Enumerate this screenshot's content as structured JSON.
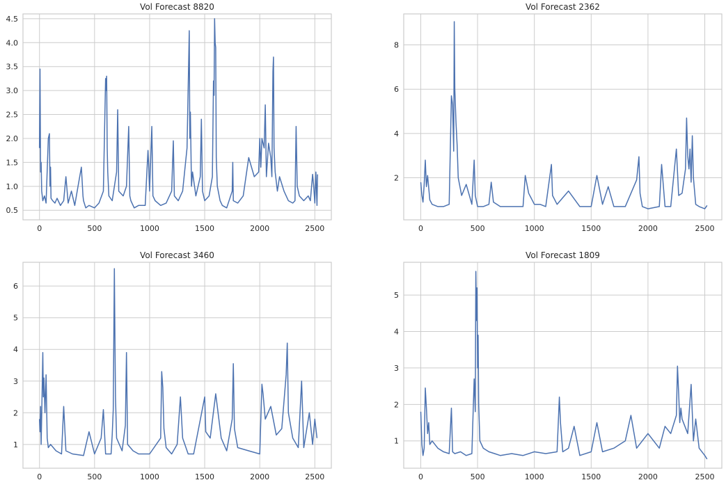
{
  "chart_data": [
    {
      "type": "line",
      "title": "Vol Forecast 8820",
      "xlabel": "",
      "ylabel": "",
      "xlim": [
        -150,
        2650
      ],
      "ylim": [
        0.3,
        4.6
      ],
      "xticks": [
        0,
        500,
        1000,
        1500,
        2000,
        2500
      ],
      "xtick_labels": [
        "0",
        "500",
        "1000",
        "1500",
        "2000",
        "2500"
      ],
      "yticks": [
        0.5,
        1.0,
        1.5,
        2.0,
        2.5,
        3.0,
        3.5,
        4.0,
        4.5
      ],
      "ytick_labels": [
        "0.5",
        "1.0",
        "1.5",
        "2.0",
        "2.5",
        "3.0",
        "3.5",
        "4.0",
        "4.5"
      ],
      "grid": true,
      "color": "#4c72b0",
      "series": [
        {
          "x": [
            0,
            5,
            10,
            15,
            20,
            30,
            45,
            60,
            80,
            90,
            95,
            100,
            105,
            120,
            140,
            160,
            190,
            220,
            240,
            260,
            290,
            320,
            350,
            380,
            395,
            400,
            420,
            450,
            500,
            540,
            580,
            600,
            605,
            610,
            615,
            620,
            630,
            660,
            700,
            710,
            720,
            760,
            790,
            810,
            820,
            830,
            860,
            900,
            960,
            985,
            990,
            1000,
            1020,
            1030,
            1050,
            1100,
            1150,
            1200,
            1215,
            1225,
            1260,
            1300,
            1340,
            1360,
            1365,
            1370,
            1380,
            1390,
            1420,
            1460,
            1470,
            1480,
            1500,
            1540,
            1570,
            1580,
            1585,
            1590,
            1595,
            1600,
            1605,
            1615,
            1640,
            1660,
            1700,
            1750,
            1755,
            1760,
            1800,
            1850,
            1900,
            1950,
            1990,
            2000,
            2010,
            2020,
            2040,
            2050,
            2060,
            2080,
            2100,
            2110,
            2120,
            2125,
            2130,
            2140,
            2160,
            2180,
            2220,
            2260,
            2300,
            2320,
            2330,
            2340,
            2360,
            2400,
            2440,
            2460,
            2480,
            2490,
            2500,
            2510,
            2520,
            2525
          ],
          "y": [
            1.8,
            3.45,
            1.3,
            1.5,
            0.9,
            0.7,
            0.8,
            0.65,
            2.0,
            2.1,
            1.0,
            1.4,
            0.75,
            0.7,
            0.65,
            0.75,
            0.6,
            0.7,
            1.2,
            0.65,
            0.9,
            0.6,
            1.0,
            1.4,
            0.8,
            0.7,
            0.55,
            0.6,
            0.55,
            0.65,
            0.9,
            3.25,
            3.0,
            3.3,
            1.8,
            1.3,
            0.8,
            0.7,
            1.3,
            2.6,
            0.9,
            0.8,
            1.0,
            2.25,
            0.8,
            0.7,
            0.55,
            0.6,
            0.6,
            1.75,
            1.5,
            0.9,
            2.25,
            0.8,
            0.7,
            0.6,
            0.65,
            0.9,
            1.95,
            0.8,
            0.7,
            0.9,
            1.8,
            4.25,
            2.0,
            2.55,
            1.0,
            1.3,
            0.8,
            1.2,
            2.4,
            0.9,
            0.7,
            0.8,
            1.2,
            3.2,
            2.9,
            4.5,
            4.0,
            3.9,
            1.6,
            1.0,
            0.7,
            0.6,
            0.55,
            0.9,
            1.5,
            0.7,
            0.65,
            0.8,
            1.6,
            1.2,
            1.3,
            2.0,
            1.4,
            2.0,
            1.8,
            2.7,
            1.2,
            1.9,
            1.6,
            1.2,
            3.4,
            3.7,
            1.8,
            1.3,
            0.9,
            1.2,
            0.9,
            0.7,
            0.65,
            0.7,
            2.25,
            1.0,
            0.8,
            0.7,
            0.8,
            0.7,
            1.25,
            1.0,
            0.65,
            1.3,
            0.6,
            1.25
          ]
        }
      ]
    },
    {
      "type": "line",
      "title": "Vol Forecast 2362",
      "xlabel": "",
      "ylabel": "",
      "xlim": [
        -150,
        2650
      ],
      "ylim": [
        0.1,
        9.4
      ],
      "xticks": [
        0,
        500,
        1000,
        1500,
        2000,
        2500
      ],
      "xtick_labels": [
        "0",
        "500",
        "1000",
        "1500",
        "2000",
        "2500"
      ],
      "yticks": [
        2,
        4,
        6,
        8
      ],
      "ytick_labels": [
        "2",
        "4",
        "6",
        "8"
      ],
      "grid": true,
      "color": "#4c72b0",
      "series": [
        {
          "x": [
            0,
            10,
            20,
            30,
            40,
            50,
            60,
            80,
            100,
            150,
            200,
            250,
            270,
            280,
            290,
            295,
            300,
            310,
            320,
            330,
            360,
            400,
            450,
            470,
            480,
            500,
            550,
            600,
            620,
            640,
            700,
            800,
            900,
            920,
            950,
            1000,
            1050,
            1100,
            1150,
            1160,
            1200,
            1300,
            1400,
            1500,
            1550,
            1600,
            1650,
            1700,
            1800,
            1900,
            1920,
            1930,
            1950,
            2000,
            2100,
            2120,
            2150,
            2200,
            2250,
            2270,
            2300,
            2330,
            2340,
            2350,
            2360,
            2370,
            2380,
            2390,
            2400,
            2420,
            2450,
            2500,
            2520
          ],
          "y": [
            1.8,
            1.2,
            0.9,
            1.7,
            2.8,
            1.6,
            2.1,
            1.0,
            0.8,
            0.7,
            0.7,
            0.8,
            5.7,
            5.3,
            3.2,
            9.05,
            6.0,
            4.5,
            3.5,
            2.0,
            1.2,
            1.7,
            0.8,
            2.8,
            1.2,
            0.7,
            0.7,
            0.8,
            1.8,
            0.9,
            0.7,
            0.7,
            0.7,
            2.1,
            1.3,
            0.8,
            0.8,
            0.7,
            2.6,
            1.2,
            0.8,
            1.4,
            0.7,
            0.7,
            2.1,
            0.8,
            1.6,
            0.7,
            0.7,
            1.9,
            2.95,
            1.3,
            0.7,
            0.6,
            0.7,
            2.6,
            0.7,
            0.7,
            3.3,
            1.2,
            1.3,
            2.4,
            4.7,
            3.0,
            2.4,
            3.3,
            1.8,
            3.9,
            2.0,
            0.8,
            0.7,
            0.6,
            0.75
          ]
        }
      ]
    },
    {
      "type": "line",
      "title": "Vol Forecast 3460",
      "xlabel": "",
      "ylabel": "",
      "xlim": [
        -150,
        2650
      ],
      "ylim": [
        0.25,
        6.75
      ],
      "xticks": [
        0,
        500,
        1000,
        1500,
        2000,
        2500
      ],
      "xtick_labels": [
        "0",
        "500",
        "1000",
        "1500",
        "2000",
        "2500"
      ],
      "yticks": [
        1,
        2,
        3,
        4,
        5,
        6
      ],
      "ytick_labels": [
        "1",
        "2",
        "3",
        "4",
        "5",
        "6"
      ],
      "grid": true,
      "color": "#4c72b0",
      "series": [
        {
          "x": [
            0,
            5,
            10,
            15,
            20,
            30,
            35,
            40,
            50,
            60,
            70,
            80,
            100,
            150,
            200,
            220,
            240,
            300,
            400,
            450,
            500,
            560,
            580,
            600,
            650,
            660,
            670,
            680,
            685,
            690,
            700,
            750,
            780,
            790,
            800,
            850,
            900,
            1000,
            1100,
            1110,
            1120,
            1130,
            1150,
            1200,
            1250,
            1280,
            1300,
            1350,
            1400,
            1500,
            1510,
            1550,
            1600,
            1650,
            1700,
            1750,
            1760,
            1770,
            1800,
            1900,
            2000,
            2020,
            2030,
            2050,
            2100,
            2150,
            2200,
            2240,
            2250,
            2260,
            2300,
            2350,
            2380,
            2400,
            2450,
            2480,
            2500,
            2520
          ],
          "y": [
            1.8,
            1.4,
            2.2,
            1.0,
            1.9,
            3.9,
            2.5,
            3.1,
            2.0,
            3.2,
            1.2,
            0.9,
            1.0,
            0.8,
            0.7,
            2.2,
            0.8,
            0.7,
            0.65,
            1.4,
            0.7,
            1.2,
            2.1,
            0.7,
            0.7,
            1.3,
            2.1,
            6.55,
            4.4,
            2.5,
            1.2,
            0.8,
            1.6,
            3.9,
            1.0,
            0.8,
            0.7,
            0.7,
            1.2,
            3.3,
            2.8,
            1.5,
            0.9,
            0.7,
            1.0,
            2.5,
            1.2,
            0.7,
            0.7,
            2.5,
            1.4,
            1.2,
            2.6,
            1.2,
            0.8,
            1.8,
            3.55,
            1.5,
            0.9,
            0.8,
            0.7,
            2.9,
            2.6,
            1.8,
            2.2,
            1.3,
            1.5,
            3.2,
            4.2,
            2.0,
            1.2,
            0.9,
            3.0,
            0.9,
            2.0,
            1.0,
            1.8,
            1.2
          ]
        }
      ]
    },
    {
      "type": "line",
      "title": "Vol Forecast 1809",
      "xlabel": "",
      "ylabel": "",
      "xlim": [
        -150,
        2650
      ],
      "ylim": [
        0.25,
        5.9
      ],
      "xticks": [
        0,
        500,
        1000,
        1500,
        2000,
        2500
      ],
      "xtick_labels": [
        "0",
        "500",
        "1000",
        "1500",
        "2000",
        "2500"
      ],
      "yticks": [
        1,
        2,
        3,
        4,
        5
      ],
      "ytick_labels": [
        "1",
        "2",
        "3",
        "4",
        "5"
      ],
      "grid": true,
      "color": "#4c72b0",
      "series": [
        {
          "x": [
            0,
            10,
            20,
            30,
            40,
            50,
            60,
            70,
            80,
            100,
            150,
            200,
            250,
            270,
            280,
            300,
            350,
            400,
            450,
            470,
            480,
            485,
            490,
            495,
            500,
            505,
            510,
            520,
            550,
            600,
            650,
            700,
            800,
            900,
            1000,
            1100,
            1200,
            1220,
            1230,
            1250,
            1300,
            1350,
            1400,
            1500,
            1550,
            1600,
            1700,
            1800,
            1850,
            1900,
            2000,
            2100,
            2150,
            2200,
            2250,
            2260,
            2270,
            2280,
            2290,
            2300,
            2350,
            2380,
            2400,
            2420,
            2450,
            2500,
            2520
          ],
          "y": [
            1.8,
            0.9,
            0.6,
            0.8,
            2.45,
            1.9,
            1.2,
            1.5,
            0.9,
            1.0,
            0.8,
            0.7,
            0.65,
            1.9,
            0.7,
            0.65,
            0.7,
            0.6,
            0.65,
            2.7,
            1.8,
            5.65,
            4.3,
            5.2,
            3.0,
            3.9,
            2.0,
            1.0,
            0.8,
            0.7,
            0.65,
            0.6,
            0.65,
            0.6,
            0.7,
            0.65,
            0.7,
            2.2,
            1.5,
            0.7,
            0.8,
            1.4,
            0.6,
            0.7,
            1.5,
            0.7,
            0.8,
            1.0,
            1.7,
            0.8,
            1.2,
            0.8,
            1.4,
            1.2,
            1.7,
            3.05,
            2.3,
            1.5,
            1.9,
            1.6,
            1.2,
            2.55,
            1.0,
            1.6,
            0.8,
            0.6,
            0.5
          ]
        }
      ]
    }
  ]
}
